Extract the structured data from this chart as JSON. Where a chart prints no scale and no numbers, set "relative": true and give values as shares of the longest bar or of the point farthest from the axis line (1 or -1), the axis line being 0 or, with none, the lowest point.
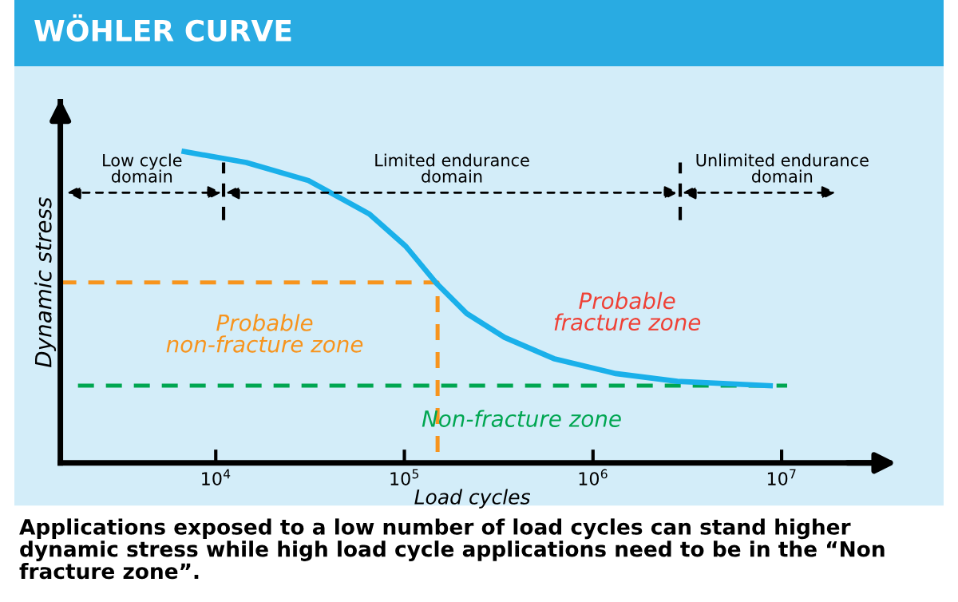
{
  "chart_data": {
    "type": "line",
    "title": "WÖHLER CURVE",
    "xlabel": "Load cycles",
    "ylabel": "Dynamic stress",
    "relative": true,
    "log": "x",
    "xlim": [
      1500,
      35000000
    ],
    "xticks": [
      {
        "value": 10000,
        "label": "10$^{4}$"
      },
      {
        "value": 100000,
        "label": "10$^{5}$"
      },
      {
        "value": 1000000,
        "label": "10$^{6}$"
      },
      {
        "value": 10000000,
        "label": "10$^{7}$"
      }
    ],
    "series": [
      {
        "color": "#1ab0ea",
        "line_style": "solid",
        "x": [
          6800,
          14500,
          31000,
          65000,
          102000,
          148000,
          214000,
          340000,
          620000,
          1320000,
          2800000,
          8700000
        ],
        "values": [
          1.0,
          0.965,
          0.907,
          0.8,
          0.695,
          0.577,
          0.48,
          0.403,
          0.335,
          0.287,
          0.262,
          0.248
        ]
      },
      {
        "color": "#f7941d",
        "line_style": "dashed",
        "x": [
          1500,
          150000,
          150000
        ],
        "values": [
          0.58,
          0.58,
          0
        ]
      },
      {
        "color": "#00a651",
        "line_style": "dashed",
        "x": [
          1860,
          10700000
        ],
        "values": [
          0.248,
          0.248
        ]
      }
    ],
    "ref_lines": [
      {
        "axis": "x",
        "value": 11000,
        "line_style": "dashed",
        "color": "#000000"
      },
      {
        "axis": "x",
        "value": 2900000,
        "line_style": "dashed",
        "color": "#000000"
      }
    ],
    "annotations": [
      "Low cycle\ndomain",
      "Limited endurance\ndomain",
      "Unlimited endurance\ndomain",
      "Probable\nnon-fracture zone",
      "Probable\nfracture zone",
      "Non-fracture zone",
      "Applications exposed to a low number of load cycles can stand higher dynamic stress while high load cycle applications need to be in the “Non fracture zone”."
    ],
    "grid": false,
    "legend": false
  }
}
